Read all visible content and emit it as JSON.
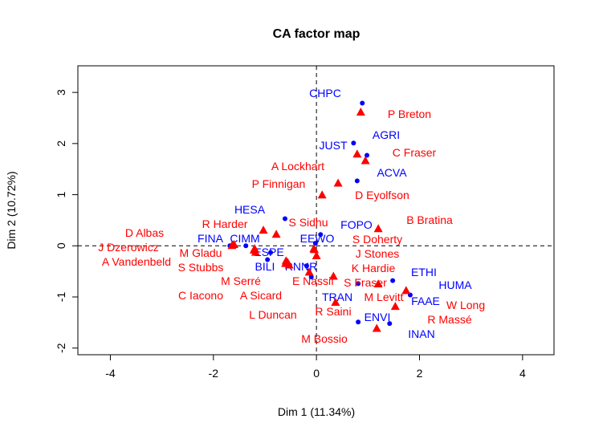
{
  "chart_data": {
    "type": "scatter",
    "title": "CA factor map",
    "xlabel": "Dim 1 (11.34%)",
    "ylabel": "Dim 2 (10.72%)",
    "xlim": [
      -4.63,
      4.61
    ],
    "ylim": [
      -2.13,
      3.52
    ],
    "xticks": [
      -4,
      -2,
      0,
      2,
      4
    ],
    "yticks": [
      -2,
      -1,
      0,
      1,
      2,
      3
    ],
    "grid": false,
    "reference_lines": "dashed at x=0 and y=0",
    "colors": {
      "columns": "#0000ff",
      "rows": "#ff0000"
    },
    "series": [
      {
        "marker": "circle",
        "color": "#0000ff",
        "points": [
          {
            "label": "CHPC",
            "x": 0.89,
            "y": 2.79
          },
          {
            "label": "JUST",
            "x": 0.72,
            "y": 2.01
          },
          {
            "label": "AGRI",
            "x": 0.98,
            "y": 1.77
          },
          {
            "label": "ACVA",
            "x": 0.79,
            "y": 1.27
          },
          {
            "label": "HESA",
            "x": -0.61,
            "y": 0.53
          },
          {
            "label": "FOPO",
            "x": 0.08,
            "y": 0.22
          },
          {
            "label": "FINA",
            "x": -1.68,
            "y": 0.0
          },
          {
            "label": "CIMM",
            "x": -1.37,
            "y": 0.0
          },
          {
            "label": "ESPE",
            "x": -0.89,
            "y": -0.13
          },
          {
            "label": "EEWO",
            "x": -0.02,
            "y": 0.05
          },
          {
            "label": "BILI",
            "x": -0.95,
            "y": -0.27
          },
          {
            "label": "RNNR",
            "x": -0.19,
            "y": -0.39
          },
          {
            "label": "TRAN",
            "x": -0.1,
            "y": -0.61
          },
          {
            "label": "FAAE",
            "x": 1.48,
            "y": -0.68
          },
          {
            "label": "ETHI",
            "x": 0.81,
            "y": -0.74
          },
          {
            "label": "HUMA",
            "x": 1.82,
            "y": -0.96
          },
          {
            "label": "ENVI",
            "x": 0.81,
            "y": -1.49
          },
          {
            "label": "INAN",
            "x": 1.42,
            "y": -1.52
          }
        ]
      },
      {
        "marker": "triangle",
        "color": "#ff0000",
        "points": [
          {
            "label": "P Breton",
            "x": 0.86,
            "y": 2.61
          },
          {
            "label": "C Fraser",
            "x": 0.79,
            "y": 1.79
          },
          {
            "label": "D Eyolfson",
            "x": 0.95,
            "y": 1.66
          },
          {
            "label": "A Lockhart",
            "x": 0.42,
            "y": 1.22
          },
          {
            "label": "P Finnigan",
            "x": 0.11,
            "y": 0.99
          },
          {
            "label": "B Bratina",
            "x": 1.2,
            "y": 0.33
          },
          {
            "label": "S Sidhu",
            "x": -0.78,
            "y": 0.22
          },
          {
            "label": "R Harder",
            "x": -1.03,
            "y": 0.3
          },
          {
            "label": "D Albas",
            "x": -1.6,
            "y": 0.02
          },
          {
            "label": "J Dzerowicz",
            "x": -1.64,
            "y": 0.0
          },
          {
            "label": "M Gladu",
            "x": -1.2,
            "y": -0.06
          },
          {
            "label": "A Vandenbeld",
            "x": -1.18,
            "y": -0.13
          },
          {
            "label": "S Stubbs",
            "x": -1.21,
            "y": -0.09
          },
          {
            "label": "M Serré",
            "x": -0.59,
            "y": -0.3
          },
          {
            "label": "C Iacono",
            "x": -0.53,
            "y": -0.38
          },
          {
            "label": "A Sicard",
            "x": -0.56,
            "y": -0.33
          },
          {
            "label": "L Duncan",
            "x": -0.6,
            "y": -0.35
          },
          {
            "label": "M Bossio",
            "x": 1.17,
            "y": -1.62
          },
          {
            "label": "S Doherty",
            "x": -0.05,
            "y": -0.06
          },
          {
            "label": "J Stones",
            "x": -0.04,
            "y": -0.08
          },
          {
            "label": "K Hardie",
            "x": 0.0,
            "y": -0.2
          },
          {
            "label": "S Fraser",
            "x": 0.33,
            "y": -0.6
          },
          {
            "label": "E Nassif",
            "x": -0.14,
            "y": -0.52
          },
          {
            "label": "M Levitt",
            "x": 1.2,
            "y": -0.75
          },
          {
            "label": "R Saini",
            "x": 0.37,
            "y": -1.11
          },
          {
            "label": "W Long",
            "x": 1.74,
            "y": -0.88
          },
          {
            "label": "R Massé",
            "x": 1.53,
            "y": -1.19
          }
        ]
      }
    ]
  }
}
